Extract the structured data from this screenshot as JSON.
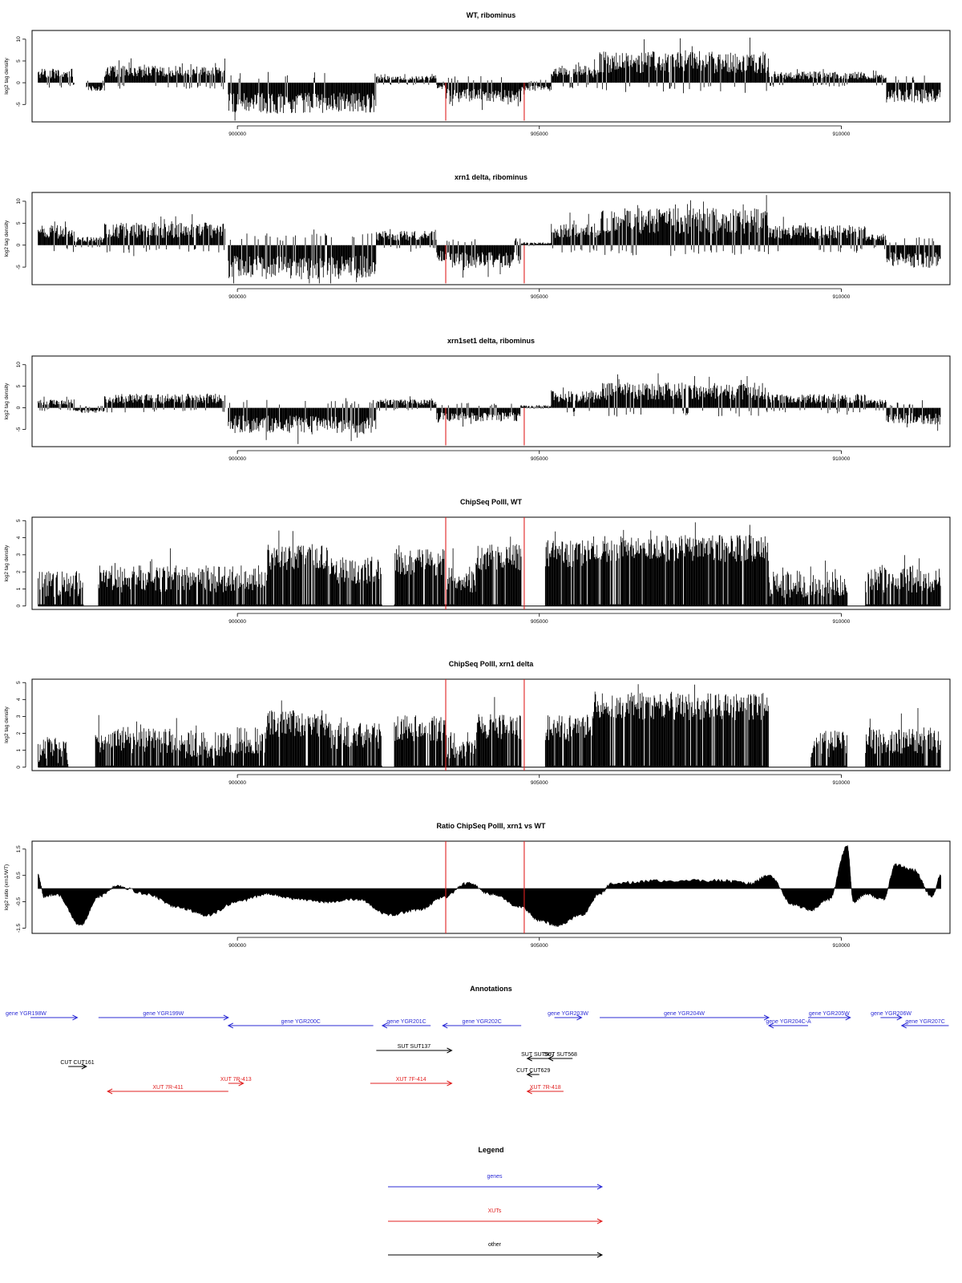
{
  "colors": {
    "gene": "#2b2bd6",
    "xut": "#e02020",
    "other": "#000000",
    "marker": "#e02020",
    "bars": "#000000"
  },
  "chart_data": [
    {
      "type": "bar",
      "title": "WT, ribominus",
      "ylabel": "log2 tag density",
      "xlim": [
        896600,
        911800
      ],
      "ylim": [
        -9,
        12
      ],
      "xticks": [
        900000,
        905000,
        910000
      ],
      "yticks": [
        -5,
        0,
        5,
        10
      ],
      "markers_x": [
        903450,
        904750
      ],
      "regions": [
        {
          "x": [
            896700,
            897300
          ],
          "v": 2.5
        },
        {
          "x": [
            897300,
            897500
          ],
          "v": 0
        },
        {
          "x": [
            897500,
            897800
          ],
          "v": -1.5
        },
        {
          "x": [
            897800,
            899800
          ],
          "v": 3
        },
        {
          "x": [
            899850,
            902300
          ],
          "v": -5.5
        },
        {
          "x": [
            902300,
            903300
          ],
          "v": 1.2
        },
        {
          "x": [
            903300,
            903450
          ],
          "v": -1
        },
        {
          "x": [
            903450,
            904700
          ],
          "v": -3.5
        },
        {
          "x": [
            904700,
            905200
          ],
          "v": -1.5
        },
        {
          "x": [
            905200,
            906000
          ],
          "v": 3
        },
        {
          "x": [
            906000,
            908800
          ],
          "v": 5.5
        },
        {
          "x": [
            908800,
            910400
          ],
          "v": 2
        },
        {
          "x": [
            910400,
            910750
          ],
          "v": 1.5
        },
        {
          "x": [
            910750,
            911650
          ],
          "v": -3.5
        }
      ]
    },
    {
      "type": "bar",
      "title": "xrn1 delta, ribominus",
      "ylabel": "log2 tag density",
      "xlim": [
        896600,
        911800
      ],
      "ylim": [
        -9,
        12
      ],
      "xticks": [
        900000,
        905000,
        910000
      ],
      "yticks": [
        -5,
        0,
        5,
        10
      ],
      "markers_x": [
        903450,
        904750
      ],
      "regions": [
        {
          "x": [
            896700,
            897300
          ],
          "v": 3.5
        },
        {
          "x": [
            897300,
            897800
          ],
          "v": 1.5
        },
        {
          "x": [
            897800,
            899800
          ],
          "v": 4
        },
        {
          "x": [
            899850,
            902300
          ],
          "v": -6
        },
        {
          "x": [
            902300,
            903300
          ],
          "v": 2.5
        },
        {
          "x": [
            903300,
            903450
          ],
          "v": -3
        },
        {
          "x": [
            903450,
            904700
          ],
          "v": -4
        },
        {
          "x": [
            904700,
            905200
          ],
          "v": 0.5
        },
        {
          "x": [
            905200,
            906000
          ],
          "v": 4
        },
        {
          "x": [
            906000,
            908800
          ],
          "v": 6.5
        },
        {
          "x": [
            908800,
            910400
          ],
          "v": 3.5
        },
        {
          "x": [
            910400,
            910750
          ],
          "v": 2
        },
        {
          "x": [
            910750,
            911650
          ],
          "v": -4
        }
      ]
    },
    {
      "type": "bar",
      "title": "xrn1set1 delta, ribominus",
      "ylabel": "log2 tag density",
      "xlim": [
        896600,
        911800
      ],
      "ylim": [
        -9,
        12
      ],
      "xticks": [
        900000,
        905000,
        910000
      ],
      "yticks": [
        -5,
        0,
        5,
        10
      ],
      "markers_x": [
        903450,
        904750
      ],
      "regions": [
        {
          "x": [
            896700,
            897300
          ],
          "v": 1.5
        },
        {
          "x": [
            897300,
            897800
          ],
          "v": -1
        },
        {
          "x": [
            897800,
            899800
          ],
          "v": 2.5
        },
        {
          "x": [
            899850,
            902300
          ],
          "v": -4.5
        },
        {
          "x": [
            902300,
            903300
          ],
          "v": 1.5
        },
        {
          "x": [
            903300,
            903450
          ],
          "v": -2.5
        },
        {
          "x": [
            903450,
            904700
          ],
          "v": -2.5
        },
        {
          "x": [
            904700,
            905200
          ],
          "v": 0.5
        },
        {
          "x": [
            905200,
            906000
          ],
          "v": 3
        },
        {
          "x": [
            906000,
            908800
          ],
          "v": 4.5
        },
        {
          "x": [
            908800,
            910400
          ],
          "v": 2.5
        },
        {
          "x": [
            910400,
            910750
          ],
          "v": 1.5
        },
        {
          "x": [
            910750,
            911650
          ],
          "v": -3
        }
      ]
    },
    {
      "type": "bar",
      "title": "ChipSeq PolII, WT",
      "ylabel": "log2 tag density",
      "xlim": [
        896600,
        911800
      ],
      "ylim": [
        -0.2,
        5.2
      ],
      "xticks": [
        900000,
        905000,
        910000
      ],
      "yticks": [
        0,
        1,
        2,
        3,
        4,
        5
      ],
      "markers_x": [
        903450,
        904750
      ],
      "regions": [
        {
          "x": [
            896700,
            897450
          ],
          "v": 1.2
        },
        {
          "x": [
            897450,
            897700
          ],
          "v": 0
        },
        {
          "x": [
            897700,
            899800
          ],
          "v": 1.5
        },
        {
          "x": [
            899800,
            900500
          ],
          "v": 1.5
        },
        {
          "x": [
            900500,
            901500
          ],
          "v": 2.8
        },
        {
          "x": [
            901500,
            902400
          ],
          "v": 2
        },
        {
          "x": [
            902400,
            902600
          ],
          "v": 0
        },
        {
          "x": [
            902600,
            903450
          ],
          "v": 2.5
        },
        {
          "x": [
            903450,
            903950
          ],
          "v": 1.5
        },
        {
          "x": [
            903950,
            904700
          ],
          "v": 2.8
        },
        {
          "x": [
            904700,
            905100
          ],
          "v": 0
        },
        {
          "x": [
            905100,
            905900
          ],
          "v": 3
        },
        {
          "x": [
            905900,
            908800
          ],
          "v": 3.3
        },
        {
          "x": [
            908800,
            910100
          ],
          "v": 1.2
        },
        {
          "x": [
            910100,
            910400
          ],
          "v": 0
        },
        {
          "x": [
            910400,
            911650
          ],
          "v": 1.5
        }
      ]
    },
    {
      "type": "bar",
      "title": "ChipSeq PolII, xrn1 delta",
      "ylabel": "log2 tag density",
      "xlim": [
        896600,
        911800
      ],
      "ylim": [
        -0.2,
        5.2
      ],
      "xticks": [
        900000,
        905000,
        910000
      ],
      "yticks": [
        0,
        1,
        2,
        3,
        4,
        5
      ],
      "markers_x": [
        903450,
        904750
      ],
      "regions": [
        {
          "x": [
            896700,
            897200
          ],
          "v": 0.9
        },
        {
          "x": [
            897200,
            897650
          ],
          "v": 0
        },
        {
          "x": [
            897650,
            899000
          ],
          "v": 1.5
        },
        {
          "x": [
            899000,
            900000
          ],
          "v": 1.2
        },
        {
          "x": [
            900000,
            900500
          ],
          "v": 1.5
        },
        {
          "x": [
            900500,
            901500
          ],
          "v": 2.5
        },
        {
          "x": [
            901500,
            902400
          ],
          "v": 1.8
        },
        {
          "x": [
            902400,
            902600
          ],
          "v": 0
        },
        {
          "x": [
            902600,
            903450
          ],
          "v": 2.2
        },
        {
          "x": [
            903450,
            903950
          ],
          "v": 1.2
        },
        {
          "x": [
            903950,
            904700
          ],
          "v": 2.3
        },
        {
          "x": [
            904700,
            905100
          ],
          "v": 0
        },
        {
          "x": [
            905100,
            905900
          ],
          "v": 2.2
        },
        {
          "x": [
            905900,
            908800
          ],
          "v": 3.5
        },
        {
          "x": [
            908800,
            909500
          ],
          "v": 0
        },
        {
          "x": [
            909500,
            910100
          ],
          "v": 1.3
        },
        {
          "x": [
            910100,
            910400
          ],
          "v": 0
        },
        {
          "x": [
            910400,
            911650
          ],
          "v": 1.5
        }
      ]
    },
    {
      "type": "area",
      "title": "Ratio ChipSeq PolII, xrn1 vs WT",
      "ylabel": "log2 ratio (xrn1/WT)",
      "xlim": [
        896600,
        911800
      ],
      "ylim": [
        -1.7,
        1.8
      ],
      "xticks": [
        900000,
        905000,
        910000
      ],
      "yticks": [
        -1.5,
        -0.5,
        0.5,
        1.5
      ],
      "ytick_labels": [
        "-1.5",
        "-0.5",
        "0.5",
        "1.5"
      ],
      "markers_x": [
        903450,
        904750
      ],
      "x": [
        896700,
        896800,
        897000,
        897400,
        897700,
        898000,
        898500,
        899000,
        899500,
        900000,
        900500,
        901000,
        901500,
        902000,
        902500,
        903000,
        903450,
        903800,
        904200,
        904700,
        905000,
        905300,
        905700,
        906000,
        906200,
        907000,
        908000,
        908500,
        908800,
        909200,
        909500,
        909800,
        910100,
        910200,
        910400,
        910700,
        910900,
        911200,
        911500,
        911650
      ],
      "values": [
        0.5,
        -0.3,
        -0.2,
        -1.4,
        -0.3,
        0.1,
        -0.2,
        -0.7,
        -1.0,
        -0.5,
        -0.2,
        -0.4,
        -0.5,
        -0.4,
        -1.0,
        -0.8,
        -0.3,
        0.2,
        -0.2,
        -0.7,
        -1.2,
        -1.4,
        -1.0,
        -0.2,
        0.2,
        0.3,
        0.3,
        0.2,
        0.5,
        -0.6,
        -0.8,
        -0.4,
        1.6,
        -0.5,
        -0.2,
        -0.4,
        0.9,
        0.7,
        -0.3,
        0.5
      ]
    }
  ],
  "annotations": {
    "title": "Annotations",
    "features": [
      {
        "label": "gene YGR198W",
        "kind": "gene",
        "x0": 896300,
        "x1": 897350,
        "dir": 1,
        "row": 0,
        "label_x": 896500
      },
      {
        "label": "gene YGR199W",
        "kind": "gene",
        "x0": 897700,
        "x1": 899850,
        "dir": 1,
        "row": 0
      },
      {
        "label": "gene YGR200C",
        "kind": "gene",
        "x0": 899850,
        "x1": 902250,
        "dir": -1,
        "row": 1
      },
      {
        "label": "gene YGR201C",
        "kind": "gene",
        "x0": 902400,
        "x1": 903200,
        "dir": -1,
        "row": 1
      },
      {
        "label": "gene YGR202C",
        "kind": "gene",
        "x0": 903400,
        "x1": 904700,
        "dir": -1,
        "row": 1
      },
      {
        "label": "gene YGR203W",
        "kind": "gene",
        "x0": 905250,
        "x1": 905700,
        "dir": 1,
        "row": 0
      },
      {
        "label": "gene YGR204W",
        "kind": "gene",
        "x0": 906000,
        "x1": 908800,
        "dir": 1,
        "row": 0
      },
      {
        "label": "gene YGR204C-A",
        "kind": "gene",
        "x0": 908800,
        "x1": 909450,
        "dir": -1,
        "row": 1
      },
      {
        "label": "gene YGR205W",
        "kind": "gene",
        "x0": 909450,
        "x1": 910150,
        "dir": 1,
        "row": 0
      },
      {
        "label": "gene YGR206W",
        "kind": "gene",
        "x0": 910650,
        "x1": 911000,
        "dir": 1,
        "row": 0
      },
      {
        "label": "gene YGR207C",
        "kind": "gene",
        "x0": 911000,
        "x1": 911780,
        "dir": -1,
        "row": 1
      },
      {
        "label": "SUT SUT137",
        "kind": "other",
        "x0": 902300,
        "x1": 903550,
        "dir": 1,
        "row": 2
      },
      {
        "label": "SUT SUT567",
        "kind": "other",
        "x0": 904800,
        "x1": 905150,
        "dir": -1,
        "row": 3
      },
      {
        "label": "SUT SUT568",
        "kind": "other",
        "x0": 905150,
        "x1": 905550,
        "dir": -1,
        "row": 3
      },
      {
        "label": "CUT CUT161",
        "kind": "other",
        "x0": 897200,
        "x1": 897500,
        "dir": 1,
        "row": 4
      },
      {
        "label": "CUT CUT629",
        "kind": "other",
        "x0": 904800,
        "x1": 905000,
        "dir": -1,
        "row": 5
      },
      {
        "label": "XUT 7R-413",
        "kind": "xut",
        "x0": 899850,
        "x1": 900100,
        "dir": 1,
        "row": 6
      },
      {
        "label": "XUT 7R-411",
        "kind": "xut",
        "x0": 897850,
        "x1": 899850,
        "dir": -1,
        "row": 7
      },
      {
        "label": "XUT 7F-414",
        "kind": "xut",
        "x0": 902200,
        "x1": 903550,
        "dir": 1,
        "row": 6
      },
      {
        "label": "XUT 7R-418",
        "kind": "xut",
        "x0": 904800,
        "x1": 905400,
        "dir": -1,
        "row": 7
      }
    ]
  },
  "legend": {
    "title": "Legend",
    "items": [
      {
        "label": "genes",
        "kind": "gene"
      },
      {
        "label": "XUTs",
        "kind": "xut"
      },
      {
        "label": "other",
        "kind": "other"
      }
    ]
  }
}
